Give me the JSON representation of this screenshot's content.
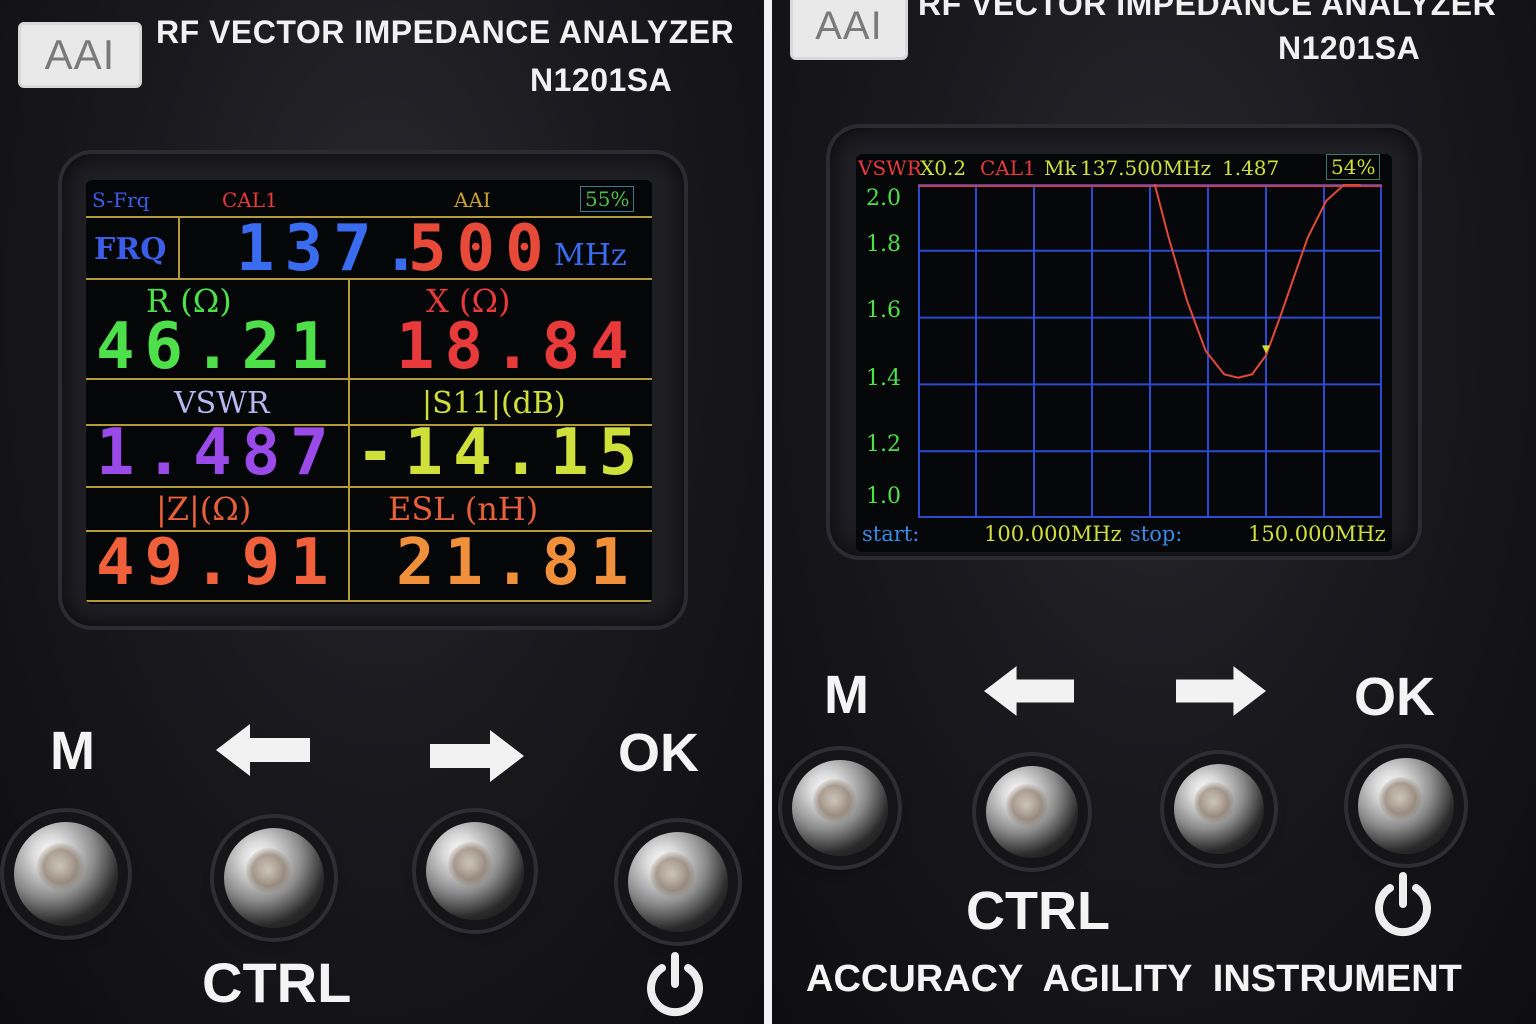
{
  "device": {
    "logo": "AAI",
    "title": "RF VECTOR IMPEDANCE ANALYZER",
    "model": "N1201SA",
    "slogan": "ACCURACY  AGILITY  INSTRUMENT"
  },
  "controls": {
    "m_label": "M",
    "ok_label": "OK",
    "ctrl_label": "CTRL"
  },
  "left_screen": {
    "mode": "S-Frq",
    "cal": "CAL1",
    "brand": "AAI",
    "battery": "55%",
    "frq_label": "FRQ",
    "frq_value_a": "137.",
    "frq_value_b": "500",
    "frq_unit": "MHz",
    "r_label": "R (Ω)",
    "r_value": "46.21",
    "x_label": "X (Ω)",
    "x_value": "18.84",
    "vswr_label": "VSWR",
    "vswr_value": "1.487",
    "s11_label": "|S11|(dB)",
    "s11_value": "-14.15",
    "z_label": "|Z|(Ω)",
    "z_value": "49.91",
    "esl_label": "ESL (nH)",
    "esl_value": "21.81",
    "colors": {
      "blue": "#3a6cf0",
      "red": "#e83a3a",
      "green": "#4ee04a",
      "purple": "#9a4ae8",
      "yellow": "#cfe03a",
      "orange": "#f06a3a",
      "grid": "#b59a3a"
    }
  },
  "right_screen": {
    "header": {
      "mode": "VSWR",
      "scale": "X0.2",
      "cal": "CAL1",
      "marker": "Mk",
      "marker_freq": "137.500MHz",
      "marker_value": "1.487",
      "battery": "54%"
    },
    "footer": {
      "start_label": "start:",
      "start_value": "100.000MHz",
      "stop_label": "stop:",
      "stop_value": "150.000MHz"
    },
    "y_ticks": [
      "2.0",
      "1.8",
      "1.6",
      "1.4",
      "1.2",
      "1.0"
    ],
    "trace": {
      "x_mhz": [
        125.5,
        127,
        129,
        131,
        133,
        134.5,
        136,
        137.5,
        139,
        140.5,
        142,
        144,
        146,
        147.7
      ],
      "vswr": [
        2.0,
        1.84,
        1.65,
        1.5,
        1.43,
        1.42,
        1.43,
        1.487,
        1.6,
        1.72,
        1.84,
        1.95,
        2.0,
        2.0
      ]
    },
    "x_min": 100,
    "x_max": 150,
    "y_min": 1.0,
    "y_max": 2.0
  }
}
